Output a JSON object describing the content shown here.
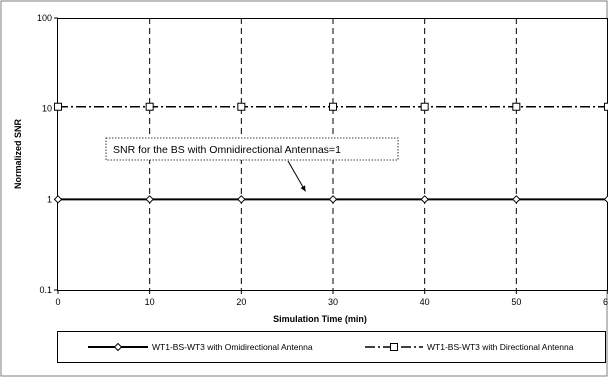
{
  "chart_data": {
    "type": "line",
    "title": "",
    "xlabel": "Simulation Time (min)",
    "ylabel": "Normalized SNR",
    "xlim": [
      0,
      60
    ],
    "ylim": [
      0.1,
      100
    ],
    "yscale": "log",
    "x_ticks": [
      "0",
      "10",
      "20",
      "30",
      "40",
      "50",
      "60"
    ],
    "y_ticks": [
      "0.1",
      "1",
      "10",
      "100"
    ],
    "grid": "vertical dashed",
    "legend_position": "bottom",
    "series": [
      {
        "name": "WT1-BS-WT3 with Omidirectional Antenna",
        "marker": "diamond",
        "line_style": "solid",
        "color": "#000000",
        "x": [
          0,
          10,
          20,
          30,
          40,
          50,
          60
        ],
        "y": [
          1,
          1,
          1,
          1,
          1,
          1,
          1
        ]
      },
      {
        "name": "WT1-BS-WT3 with Directional Antenna",
        "marker": "square",
        "line_style": "dash-dot",
        "color": "#000000",
        "x": [
          0,
          10,
          20,
          30,
          40,
          50,
          60
        ],
        "y": [
          10.5,
          10.5,
          10.5,
          10.5,
          10.5,
          10.5,
          10.5
        ]
      }
    ],
    "annotation": {
      "text": "SNR for the BS with Omnidirectional Antennas=1",
      "points_to": {
        "x": 27,
        "y": 1
      }
    }
  }
}
